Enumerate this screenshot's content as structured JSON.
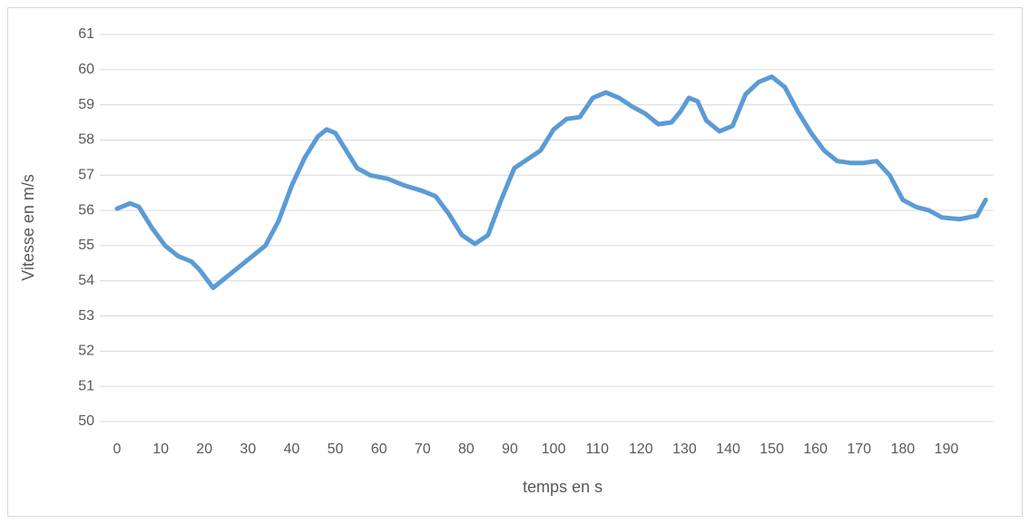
{
  "chart_data": {
    "type": "line",
    "x_label": "temps en s",
    "y_label": "Vitesse en m/s",
    "x": [
      0,
      3,
      5,
      8,
      11,
      14,
      17,
      19,
      22,
      25,
      28,
      31,
      34,
      37,
      40,
      43,
      46,
      48,
      50,
      52,
      55,
      58,
      62,
      66,
      70,
      73,
      76,
      79,
      82,
      85,
      88,
      91,
      94,
      97,
      100,
      103,
      106,
      109,
      112,
      115,
      118,
      121,
      124,
      127,
      129,
      131,
      133,
      135,
      138,
      141,
      144,
      147,
      150,
      153,
      156,
      159,
      162,
      165,
      168,
      171,
      174,
      177,
      180,
      183,
      186,
      189,
      193,
      197,
      199
    ],
    "series": [
      {
        "name": "Vitesse",
        "color": "#5b9bd5",
        "values": [
          56.05,
          56.2,
          56.1,
          55.5,
          55.0,
          54.7,
          54.55,
          54.3,
          53.8,
          54.1,
          54.4,
          54.7,
          55.0,
          55.7,
          56.7,
          57.5,
          58.1,
          58.3,
          58.2,
          57.8,
          57.2,
          57.0,
          56.9,
          56.7,
          56.55,
          56.4,
          55.9,
          55.3,
          55.05,
          55.3,
          56.3,
          57.2,
          57.45,
          57.7,
          58.3,
          58.6,
          58.65,
          59.2,
          59.35,
          59.2,
          58.95,
          58.75,
          58.45,
          58.5,
          58.8,
          59.2,
          59.1,
          58.55,
          58.25,
          58.4,
          59.3,
          59.65,
          59.8,
          59.5,
          58.8,
          58.2,
          57.7,
          57.4,
          57.35,
          57.35,
          57.4,
          57.0,
          56.3,
          56.1,
          56.0,
          55.8,
          55.75,
          55.85,
          56.3
        ]
      }
    ],
    "xlim": [
      0,
      200
    ],
    "xticks": [
      0,
      10,
      20,
      30,
      40,
      50,
      60,
      70,
      80,
      90,
      100,
      110,
      120,
      130,
      140,
      150,
      160,
      170,
      180,
      190
    ],
    "ylim": [
      50,
      61
    ],
    "yticks": [
      50,
      51,
      52,
      53,
      54,
      55,
      56,
      57,
      58,
      59,
      60,
      61
    ],
    "grid": true
  }
}
